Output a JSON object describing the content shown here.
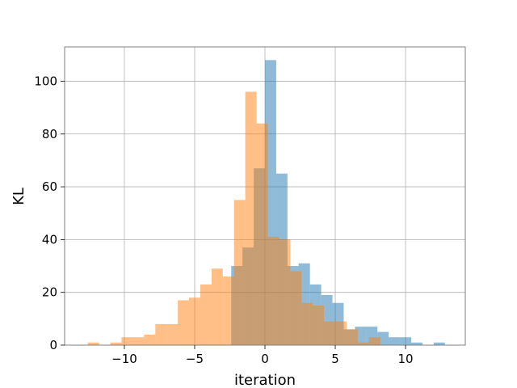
{
  "chart_data": {
    "type": "bar",
    "subtype": "overlapping-histogram",
    "xlabel": "iteration",
    "ylabel": "KL",
    "xlim": [
      -14.25,
      14.25
    ],
    "ylim": [
      0,
      113
    ],
    "grid": true,
    "xticks": [
      -10,
      -5,
      0,
      5,
      10
    ],
    "xtick_labels": [
      "−10",
      "−5",
      "0",
      "5",
      "10"
    ],
    "yticks": [
      0,
      20,
      40,
      60,
      80,
      100
    ],
    "ytick_labels": [
      "0",
      "20",
      "40",
      "60",
      "80",
      "100"
    ],
    "series": [
      {
        "color": "#1f77b4",
        "alpha": 0.5,
        "bins": [
          [
            -12.0,
            -11.2,
            0
          ],
          [
            -11.2,
            -10.4,
            0
          ],
          [
            -10.4,
            -9.6,
            0
          ],
          [
            -9.6,
            -8.8,
            0
          ],
          [
            -8.8,
            -8.0,
            0
          ],
          [
            -8.0,
            -7.2,
            0
          ],
          [
            -7.2,
            -6.4,
            0
          ],
          [
            -6.4,
            -5.6,
            0
          ],
          [
            -5.6,
            -4.8,
            0
          ],
          [
            -4.8,
            -4.0,
            0
          ],
          [
            -4.0,
            -3.2,
            0
          ],
          [
            -3.2,
            -2.4,
            0
          ],
          [
            -2.4,
            -1.6,
            30
          ],
          [
            -1.6,
            -0.8,
            37
          ],
          [
            -0.8,
            0.0,
            67
          ],
          [
            0.0,
            0.8,
            108
          ],
          [
            0.8,
            1.6,
            65
          ],
          [
            1.6,
            2.4,
            30
          ],
          [
            2.4,
            3.2,
            31
          ],
          [
            3.2,
            4.0,
            23
          ],
          [
            4.0,
            4.8,
            19
          ],
          [
            4.8,
            5.6,
            16
          ],
          [
            5.6,
            6.4,
            6
          ],
          [
            6.4,
            7.2,
            7
          ],
          [
            7.2,
            8.0,
            7
          ],
          [
            8.0,
            8.8,
            5
          ],
          [
            8.8,
            9.6,
            3
          ],
          [
            9.6,
            10.4,
            3
          ],
          [
            10.4,
            11.2,
            1
          ],
          [
            11.2,
            12.0,
            0
          ],
          [
            12.0,
            12.8,
            1
          ]
        ]
      },
      {
        "color": "#ff7f0e",
        "alpha": 0.5,
        "bins": [
          [
            -12.6,
            -11.8,
            1
          ],
          [
            -11.8,
            -11.0,
            0
          ],
          [
            -11.0,
            -10.2,
            1
          ],
          [
            -10.2,
            -9.4,
            3
          ],
          [
            -9.4,
            -8.6,
            3
          ],
          [
            -8.6,
            -7.8,
            4
          ],
          [
            -7.8,
            -7.0,
            8
          ],
          [
            -7.0,
            -6.2,
            8
          ],
          [
            -6.2,
            -5.4,
            17
          ],
          [
            -5.4,
            -4.6,
            18
          ],
          [
            -4.6,
            -3.8,
            23
          ],
          [
            -3.8,
            -3.0,
            29
          ],
          [
            -3.0,
            -2.2,
            26
          ],
          [
            -2.2,
            -1.4,
            55
          ],
          [
            -1.4,
            -0.6,
            96
          ],
          [
            -0.6,
            0.2,
            84
          ],
          [
            0.2,
            1.0,
            41
          ],
          [
            1.0,
            1.8,
            40
          ],
          [
            1.8,
            2.6,
            28
          ],
          [
            2.6,
            3.4,
            16
          ],
          [
            3.4,
            4.2,
            15
          ],
          [
            4.2,
            5.0,
            9
          ],
          [
            5.0,
            5.8,
            9
          ],
          [
            5.8,
            6.6,
            6
          ],
          [
            6.6,
            7.4,
            1
          ],
          [
            7.4,
            8.2,
            3
          ]
        ]
      }
    ]
  }
}
